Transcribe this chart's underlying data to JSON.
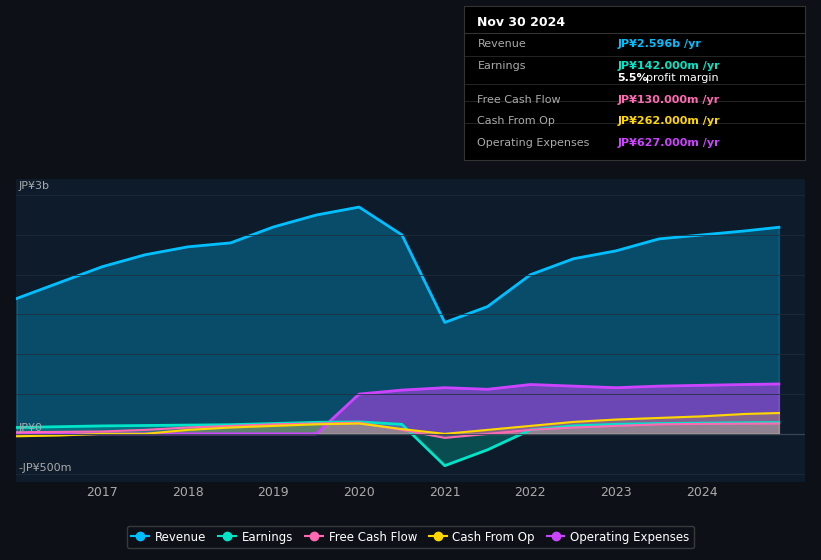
{
  "bg_color": "#0d1117",
  "plot_bg_color": "#0d1b2a",
  "y_label_top": "JP¥3b",
  "y_label_zero": "JP¥0",
  "y_label_bottom": "-JP¥500m",
  "x_ticks": [
    "2017",
    "2018",
    "2019",
    "2020",
    "2021",
    "2022",
    "2023",
    "2024"
  ],
  "legend": [
    {
      "label": "Revenue",
      "color": "#00bfff"
    },
    {
      "label": "Earnings",
      "color": "#00e5c8"
    },
    {
      "label": "Free Cash Flow",
      "color": "#ff69b4"
    },
    {
      "label": "Cash From Op",
      "color": "#ffd700"
    },
    {
      "label": "Operating Expenses",
      "color": "#cc44ff"
    }
  ],
  "info_box": {
    "title": "Nov 30 2024",
    "rows": [
      {
        "label": "Revenue",
        "value": "JP¥2.596b /yr",
        "color": "#00bfff"
      },
      {
        "label": "Earnings",
        "value": "JP¥142.000m /yr",
        "color": "#00e5c8"
      },
      {
        "label": "",
        "value": "5.5% profit margin",
        "color": "#ffffff"
      },
      {
        "label": "Free Cash Flow",
        "value": "JP¥130.000m /yr",
        "color": "#ff69b4"
      },
      {
        "label": "Cash From Op",
        "value": "JP¥262.000m /yr",
        "color": "#ffd700"
      },
      {
        "label": "Operating Expenses",
        "value": "JP¥627.000m /yr",
        "color": "#cc44ff"
      }
    ]
  },
  "revenue": {
    "x": [
      2016.0,
      2016.5,
      2017.0,
      2017.5,
      2018.0,
      2018.5,
      2019.0,
      2019.5,
      2020.0,
      2020.5,
      2021.0,
      2021.5,
      2022.0,
      2022.5,
      2023.0,
      2023.5,
      2024.0,
      2024.5,
      2024.9
    ],
    "y": [
      1700,
      1900,
      2100,
      2250,
      2350,
      2400,
      2600,
      2750,
      2850,
      2500,
      1400,
      1600,
      2000,
      2200,
      2300,
      2450,
      2500,
      2550,
      2596
    ],
    "color": "#00bfff"
  },
  "earnings": {
    "x": [
      2016.0,
      2016.5,
      2017.0,
      2017.5,
      2018.0,
      2018.5,
      2019.0,
      2019.5,
      2020.0,
      2020.5,
      2021.0,
      2021.5,
      2022.0,
      2022.5,
      2023.0,
      2023.5,
      2024.0,
      2024.5,
      2024.9
    ],
    "y": [
      80,
      90,
      100,
      105,
      110,
      115,
      130,
      145,
      150,
      120,
      -400,
      -200,
      50,
      100,
      120,
      130,
      135,
      140,
      142
    ],
    "color": "#00e5c8"
  },
  "free_cash_flow": {
    "x": [
      2016.0,
      2016.5,
      2017.0,
      2017.5,
      2018.0,
      2018.5,
      2019.0,
      2019.5,
      2020.0,
      2020.5,
      2021.0,
      2021.5,
      2022.0,
      2022.5,
      2023.0,
      2023.5,
      2024.0,
      2024.5,
      2024.9
    ],
    "y": [
      20,
      25,
      30,
      50,
      80,
      100,
      120,
      130,
      140,
      50,
      -50,
      0,
      50,
      80,
      100,
      120,
      125,
      128,
      130
    ],
    "color": "#ff69b4"
  },
  "cash_from_op": {
    "x": [
      2016.0,
      2016.5,
      2017.0,
      2017.5,
      2018.0,
      2018.5,
      2019.0,
      2019.5,
      2020.0,
      2020.5,
      2021.0,
      2021.5,
      2022.0,
      2022.5,
      2023.0,
      2023.5,
      2024.0,
      2024.5,
      2024.9
    ],
    "y": [
      -30,
      -20,
      0,
      0,
      50,
      80,
      100,
      120,
      130,
      60,
      0,
      50,
      100,
      150,
      180,
      200,
      220,
      250,
      262
    ],
    "color": "#ffd700"
  },
  "operating_expenses": {
    "x": [
      2016.0,
      2016.5,
      2017.0,
      2017.5,
      2018.0,
      2018.5,
      2019.0,
      2019.5,
      2020.0,
      2020.5,
      2021.0,
      2021.5,
      2022.0,
      2022.5,
      2023.0,
      2023.5,
      2024.0,
      2024.5,
      2024.9
    ],
    "y": [
      0,
      0,
      0,
      0,
      0,
      0,
      0,
      0,
      500,
      550,
      580,
      560,
      620,
      600,
      580,
      600,
      610,
      620,
      627
    ],
    "color": "#cc44ff"
  },
  "ylim": [
    -600,
    3200
  ],
  "xlim": [
    2016.0,
    2025.2
  ],
  "grid_color": "#1e2d3d",
  "zero_line_color": "#cccccc"
}
